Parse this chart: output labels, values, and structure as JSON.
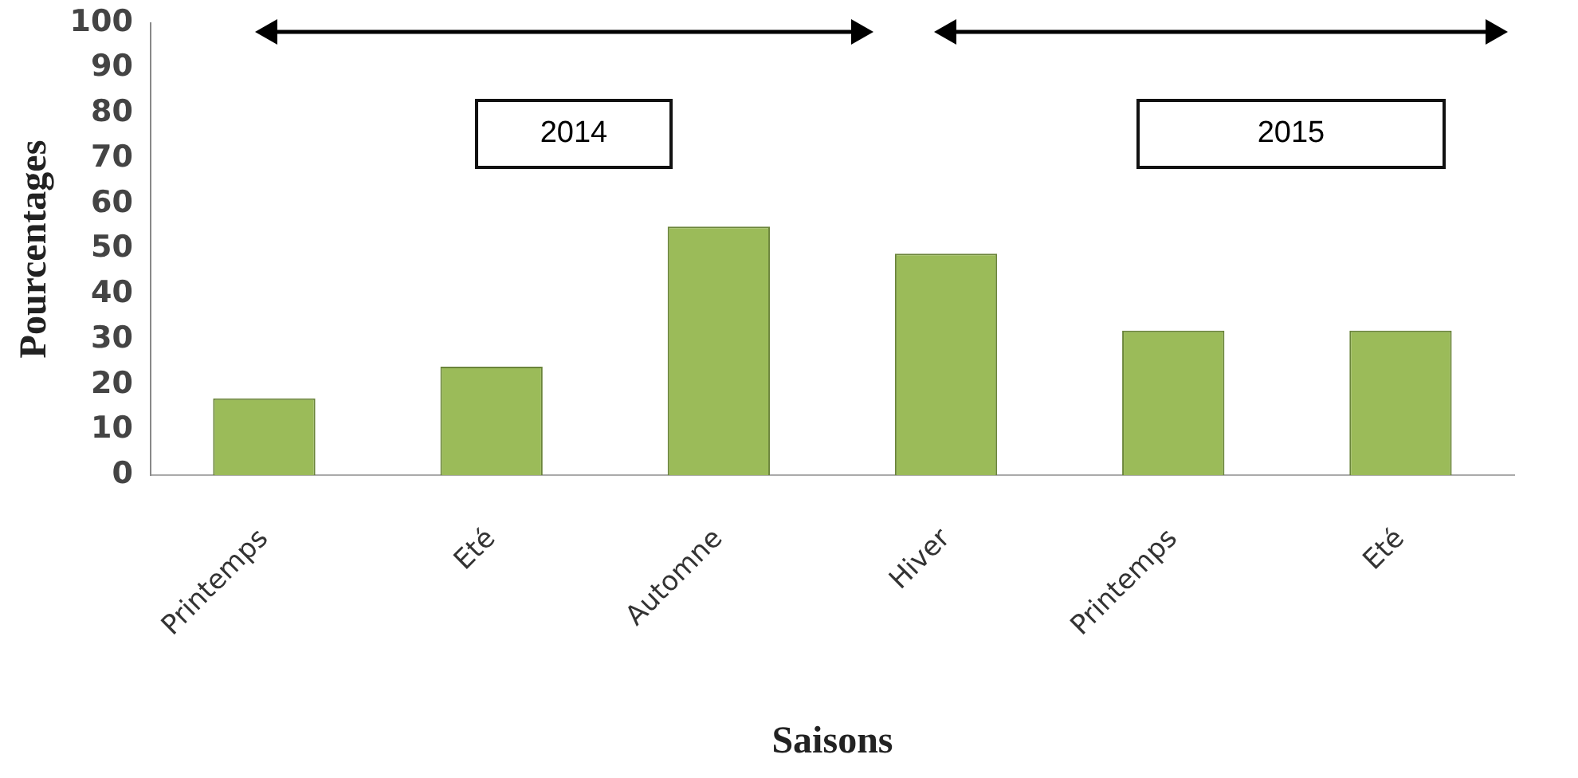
{
  "chart_data": {
    "type": "bar",
    "xlabel": "Saisons",
    "ylabel": "Pourcentages",
    "categories": [
      "Printemps",
      "Eté",
      "Automne",
      "Hiver",
      "Printemps",
      "Eté"
    ],
    "values": [
      17,
      24,
      55,
      49,
      32,
      32
    ],
    "color": "#9bbb59",
    "ylim": [
      0,
      100
    ],
    "yticks": [
      0,
      10,
      20,
      30,
      40,
      50,
      60,
      70,
      80,
      90,
      100
    ],
    "grid": false,
    "annotations": [
      "2014",
      "2015"
    ]
  }
}
